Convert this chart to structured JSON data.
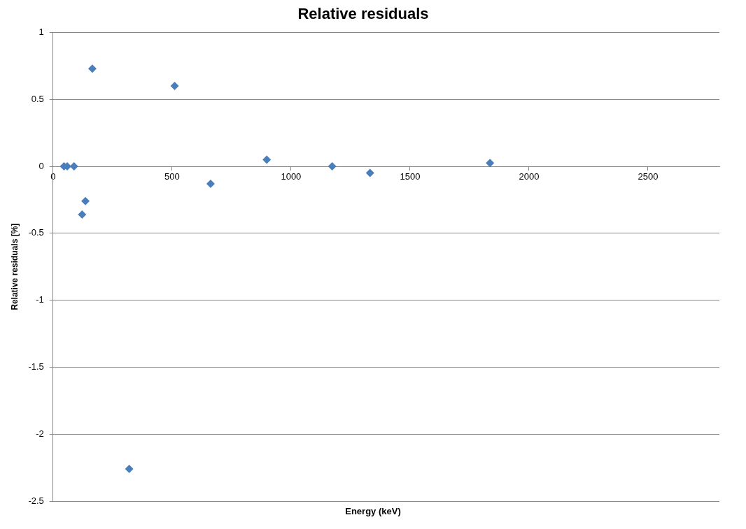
{
  "chart_data": {
    "type": "scatter",
    "title": "Relative residuals",
    "xlabel": "Energy (keV)",
    "ylabel": "Relative residuals [%]",
    "x": [
      46,
      59.5,
      88,
      122,
      136,
      165,
      320,
      511,
      662,
      898,
      1173,
      1332,
      1836
    ],
    "series": [
      {
        "color": "#4a7ebb",
        "values": [
          0,
          0,
          0,
          -0.36,
          -0.26,
          0.73,
          -2.26,
          0.6,
          -0.13,
          0.05,
          0,
          -0.05,
          0.025
        ]
      }
    ],
    "xlim": [
      0,
      2800
    ],
    "xticks": [
      0,
      500,
      1000,
      1500,
      2000,
      2500
    ],
    "ylim": [
      -2.5,
      1
    ],
    "yticks": [
      -2.5,
      -2,
      -1.5,
      -1,
      -0.5,
      0,
      0.5,
      1
    ],
    "grid": "y",
    "legend": false,
    "marker": "diamond"
  }
}
